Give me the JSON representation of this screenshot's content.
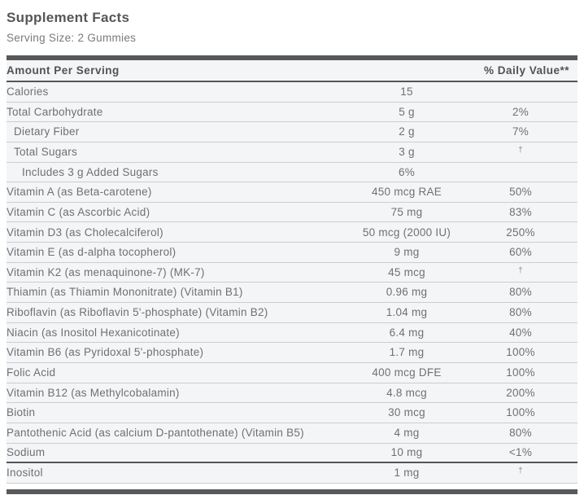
{
  "title": "Supplement Facts",
  "serving_size": "Serving Size: 2 Gummies",
  "colors": {
    "bar": "#58595b",
    "row_background": "#f4f5f6",
    "row_separator": "#cbcdd0",
    "text_dark": "#515254",
    "text_body": "#6f7074"
  },
  "table": {
    "header": {
      "amount_label": "Amount Per Serving",
      "daily_value_label": "% Daily Value**"
    },
    "rows": [
      {
        "label": "Calories",
        "amount": "15",
        "dv": "",
        "indent": 0
      },
      {
        "label": "Total Carbohydrate",
        "amount": "5 g",
        "dv": "2%",
        "indent": 0
      },
      {
        "label": "Dietary Fiber",
        "amount": "2 g",
        "dv": "7%",
        "indent": 1
      },
      {
        "label": "Total Sugars",
        "amount": "3 g",
        "dv": "†",
        "indent": 1
      },
      {
        "label": "Includes 3 g Added Sugars",
        "amount": "6%",
        "dv": "",
        "indent": 2
      },
      {
        "label": "Vitamin A (as Beta-carotene)",
        "amount": "450 mcg RAE",
        "dv": "50%",
        "indent": 0
      },
      {
        "label": "Vitamin C (as Ascorbic Acid)",
        "amount": "75 mg",
        "dv": "83%",
        "indent": 0
      },
      {
        "label": "Vitamin D3 (as Cholecalciferol)",
        "amount": "50 mcg (2000 IU)",
        "dv": "250%",
        "indent": 0
      },
      {
        "label": "Vitamin E (as d-alpha tocopherol)",
        "amount": "9 mg",
        "dv": "60%",
        "indent": 0
      },
      {
        "label": "Vitamin K2 (as menaquinone-7) (MK-7)",
        "amount": "45 mcg",
        "dv": "†",
        "indent": 0
      },
      {
        "label": "Thiamin (as Thiamin Mononitrate) (Vitamin B1)",
        "amount": "0.96 mg",
        "dv": "80%",
        "indent": 0
      },
      {
        "label": "Riboflavin (as Riboflavin 5'-phosphate) (Vitamin B2)",
        "amount": "1.04 mg",
        "dv": "80%",
        "indent": 0
      },
      {
        "label": "Niacin (as Inositol Hexanicotinate)",
        "amount": "6.4 mg",
        "dv": "40%",
        "indent": 0
      },
      {
        "label": "Vitamin B6 (as Pyridoxal 5'-phosphate)",
        "amount": "1.7 mg",
        "dv": "100%",
        "indent": 0
      },
      {
        "label": "Folic Acid",
        "amount": "400 mcg DFE",
        "dv": "100%",
        "indent": 0
      },
      {
        "label": "Vitamin B12 (as Methylcobalamin)",
        "amount": "4.8 mcg",
        "dv": "200%",
        "indent": 0
      },
      {
        "label": "Biotin",
        "amount": "30 mcg",
        "dv": "100%",
        "indent": 0
      },
      {
        "label": "Pantothenic Acid (as calcium D-pantothenate) (Vitamin B5)",
        "amount": "4 mg",
        "dv": "80%",
        "indent": 0
      },
      {
        "label": "Sodium",
        "amount": "10 mg",
        "dv": "<1%",
        "indent": 0,
        "divider_after": true
      },
      {
        "label": "Inositol",
        "amount": "1 mg",
        "dv": "†",
        "indent": 0
      }
    ]
  }
}
